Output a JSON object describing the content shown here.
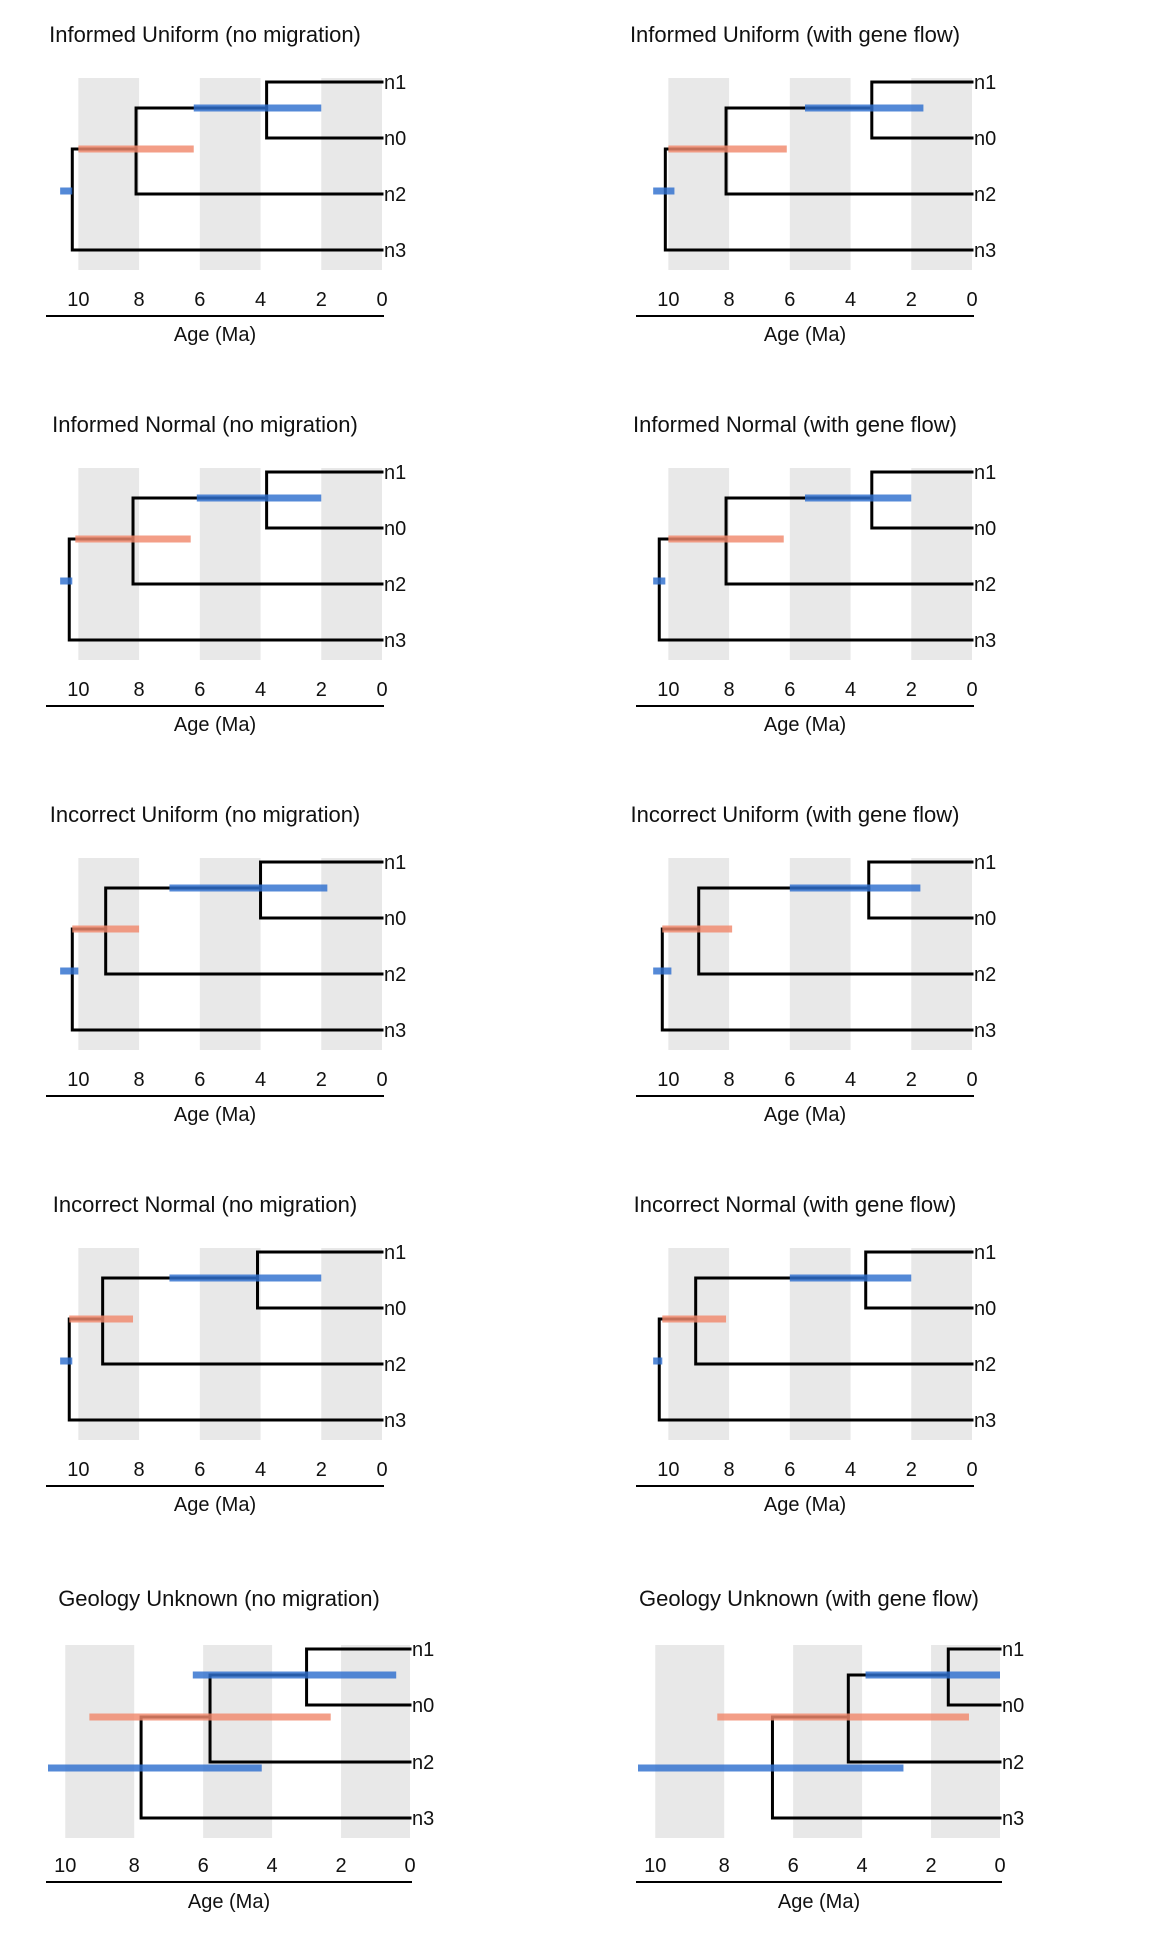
{
  "colors": {
    "background": "#ffffff",
    "band": "#e8e8e8",
    "branch": "#000000",
    "blue_bar": "#2e6fce",
    "salmon_bar": "#f0896c"
  },
  "chart_data": [
    {
      "type": "tree",
      "title": "Informed Uniform (no migration)",
      "xlabel": "Age (Ma)",
      "xticks": [
        10,
        8,
        6,
        4,
        2,
        0
      ],
      "xlim": [
        11,
        0
      ],
      "bands": [
        [
          10,
          8
        ],
        [
          6,
          4
        ],
        [
          2,
          0
        ]
      ],
      "tips": [
        "n1",
        "n0",
        "n2",
        "n3"
      ],
      "nodes": {
        "root": 10.2,
        "n2_split": 8.1,
        "n01_split": 3.8
      },
      "intervals": [
        {
          "node": "root",
          "min": 10.2,
          "max": 10.6,
          "color": "blue"
        },
        {
          "node": "n2_split",
          "min": 6.2,
          "max": 10.0,
          "color": "salmon"
        },
        {
          "node": "n01_split",
          "min": 2.0,
          "max": 6.2,
          "color": "blue"
        }
      ]
    },
    {
      "type": "tree",
      "title": "Informed Uniform (with gene flow)",
      "xlabel": "Age (Ma)",
      "xticks": [
        10,
        8,
        6,
        4,
        2,
        0
      ],
      "xlim": [
        11,
        0
      ],
      "bands": [
        [
          10,
          8
        ],
        [
          6,
          4
        ],
        [
          2,
          0
        ]
      ],
      "tips": [
        "n1",
        "n0",
        "n2",
        "n3"
      ],
      "nodes": {
        "root": 10.1,
        "n2_split": 8.1,
        "n01_split": 3.3
      },
      "intervals": [
        {
          "node": "root",
          "min": 9.8,
          "max": 10.5,
          "color": "blue"
        },
        {
          "node": "n2_split",
          "min": 6.1,
          "max": 10.0,
          "color": "salmon"
        },
        {
          "node": "n01_split",
          "min": 1.6,
          "max": 5.5,
          "color": "blue"
        }
      ]
    },
    {
      "type": "tree",
      "title": "Informed Normal (no migration)",
      "xlabel": "Age (Ma)",
      "xticks": [
        10,
        8,
        6,
        4,
        2,
        0
      ],
      "xlim": [
        11,
        0
      ],
      "bands": [
        [
          10,
          8
        ],
        [
          6,
          4
        ],
        [
          2,
          0
        ]
      ],
      "tips": [
        "n1",
        "n0",
        "n2",
        "n3"
      ],
      "nodes": {
        "root": 10.3,
        "n2_split": 8.2,
        "n01_split": 3.8
      },
      "intervals": [
        {
          "node": "root",
          "min": 10.2,
          "max": 10.6,
          "color": "blue"
        },
        {
          "node": "n2_split",
          "min": 6.3,
          "max": 10.1,
          "color": "salmon"
        },
        {
          "node": "n01_split",
          "min": 2.0,
          "max": 6.1,
          "color": "blue"
        }
      ]
    },
    {
      "type": "tree",
      "title": "Informed Normal (with gene flow)",
      "xlabel": "Age (Ma)",
      "xticks": [
        10,
        8,
        6,
        4,
        2,
        0
      ],
      "xlim": [
        11,
        0
      ],
      "bands": [
        [
          10,
          8
        ],
        [
          6,
          4
        ],
        [
          2,
          0
        ]
      ],
      "tips": [
        "n1",
        "n0",
        "n2",
        "n3"
      ],
      "nodes": {
        "root": 10.3,
        "n2_split": 8.1,
        "n01_split": 3.3
      },
      "intervals": [
        {
          "node": "root",
          "min": 10.1,
          "max": 10.5,
          "color": "blue"
        },
        {
          "node": "n2_split",
          "min": 6.2,
          "max": 10.0,
          "color": "salmon"
        },
        {
          "node": "n01_split",
          "min": 2.0,
          "max": 5.5,
          "color": "blue"
        }
      ]
    },
    {
      "type": "tree",
      "title": "Incorrect Uniform (no migration)",
      "xlabel": "Age (Ma)",
      "xticks": [
        10,
        8,
        6,
        4,
        2,
        0
      ],
      "xlim": [
        11,
        0
      ],
      "bands": [
        [
          10,
          8
        ],
        [
          6,
          4
        ],
        [
          2,
          0
        ]
      ],
      "tips": [
        "n1",
        "n0",
        "n2",
        "n3"
      ],
      "nodes": {
        "root": 10.2,
        "n2_split": 9.1,
        "n01_split": 4.0
      },
      "intervals": [
        {
          "node": "root",
          "min": 10.0,
          "max": 10.6,
          "color": "blue"
        },
        {
          "node": "n2_split",
          "min": 8.0,
          "max": 10.2,
          "color": "salmon"
        },
        {
          "node": "n01_split",
          "min": 1.8,
          "max": 7.0,
          "color": "blue"
        }
      ]
    },
    {
      "type": "tree",
      "title": "Incorrect Uniform (with gene flow)",
      "xlabel": "Age (Ma)",
      "xticks": [
        10,
        8,
        6,
        4,
        2,
        0
      ],
      "xlim": [
        11,
        0
      ],
      "bands": [
        [
          10,
          8
        ],
        [
          6,
          4
        ],
        [
          2,
          0
        ]
      ],
      "tips": [
        "n1",
        "n0",
        "n2",
        "n3"
      ],
      "nodes": {
        "root": 10.2,
        "n2_split": 9.0,
        "n01_split": 3.4
      },
      "intervals": [
        {
          "node": "root",
          "min": 9.9,
          "max": 10.5,
          "color": "blue"
        },
        {
          "node": "n2_split",
          "min": 7.9,
          "max": 10.2,
          "color": "salmon"
        },
        {
          "node": "n01_split",
          "min": 1.7,
          "max": 6.0,
          "color": "blue"
        }
      ]
    },
    {
      "type": "tree",
      "title": "Incorrect Normal (no migration)",
      "xlabel": "Age (Ma)",
      "xticks": [
        10,
        8,
        6,
        4,
        2,
        0
      ],
      "xlim": [
        11,
        0
      ],
      "bands": [
        [
          10,
          8
        ],
        [
          6,
          4
        ],
        [
          2,
          0
        ]
      ],
      "tips": [
        "n1",
        "n0",
        "n2",
        "n3"
      ],
      "nodes": {
        "root": 10.3,
        "n2_split": 9.2,
        "n01_split": 4.1
      },
      "intervals": [
        {
          "node": "root",
          "min": 10.2,
          "max": 10.6,
          "color": "blue"
        },
        {
          "node": "n2_split",
          "min": 8.2,
          "max": 10.3,
          "color": "salmon"
        },
        {
          "node": "n01_split",
          "min": 2.0,
          "max": 7.0,
          "color": "blue"
        }
      ]
    },
    {
      "type": "tree",
      "title": "Incorrect Normal (with gene flow)",
      "xlabel": "Age (Ma)",
      "xticks": [
        10,
        8,
        6,
        4,
        2,
        0
      ],
      "xlim": [
        11,
        0
      ],
      "bands": [
        [
          10,
          8
        ],
        [
          6,
          4
        ],
        [
          2,
          0
        ]
      ],
      "tips": [
        "n1",
        "n0",
        "n2",
        "n3"
      ],
      "nodes": {
        "root": 10.3,
        "n2_split": 9.1,
        "n01_split": 3.5
      },
      "intervals": [
        {
          "node": "root",
          "min": 10.2,
          "max": 10.5,
          "color": "blue"
        },
        {
          "node": "n2_split",
          "min": 8.1,
          "max": 10.2,
          "color": "salmon"
        },
        {
          "node": "n01_split",
          "min": 2.0,
          "max": 6.0,
          "color": "blue"
        }
      ]
    },
    {
      "type": "tree",
      "title": "Geology Unknown (no migration)",
      "xlabel": "Age (Ma)",
      "xticks": [
        10,
        8,
        6,
        4,
        2,
        0
      ],
      "xlim": [
        10.5,
        0
      ],
      "bands": [
        [
          10,
          8
        ],
        [
          6,
          4
        ],
        [
          2,
          0
        ]
      ],
      "tips": [
        "n1",
        "n0",
        "n2",
        "n3"
      ],
      "nodes": {
        "root": 7.8,
        "n2_split": 5.8,
        "n01_split": 3.0
      },
      "intervals": [
        {
          "node": "root",
          "min": 4.3,
          "max": 10.5,
          "color": "blue"
        },
        {
          "node": "n2_split",
          "min": 2.3,
          "max": 9.3,
          "color": "salmon"
        },
        {
          "node": "n01_split",
          "min": 0.4,
          "max": 6.3,
          "color": "blue"
        }
      ]
    },
    {
      "type": "tree",
      "title": "Geology Unknown (with gene flow)",
      "xlabel": "Age (Ma)",
      "xticks": [
        10,
        8,
        6,
        4,
        2,
        0
      ],
      "xlim": [
        10.5,
        0
      ],
      "bands": [
        [
          10,
          8
        ],
        [
          6,
          4
        ],
        [
          2,
          0
        ]
      ],
      "tips": [
        "n1",
        "n0",
        "n2",
        "n3"
      ],
      "nodes": {
        "root": 6.6,
        "n2_split": 4.4,
        "n01_split": 1.5
      },
      "intervals": [
        {
          "node": "root",
          "min": 2.8,
          "max": 10.5,
          "color": "blue"
        },
        {
          "node": "n2_split",
          "min": 0.9,
          "max": 8.2,
          "color": "salmon"
        },
        {
          "node": "n01_split",
          "min": 0.0,
          "max": 3.9,
          "color": "blue"
        }
      ]
    }
  ]
}
